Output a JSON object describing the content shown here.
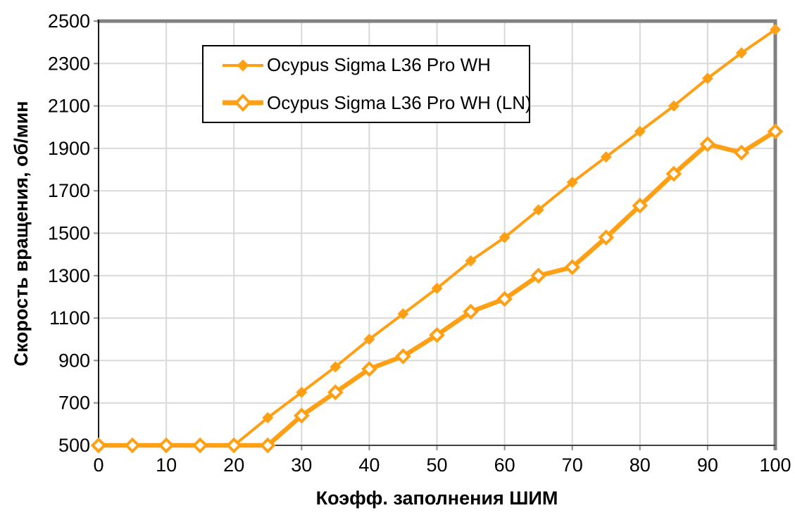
{
  "chart_data": {
    "type": "line",
    "title": "",
    "xlabel": "Коэфф. заполнения ШИМ",
    "ylabel": "Скорость вращения, об/мин",
    "xlim": [
      0,
      100
    ],
    "ylim": [
      500,
      2500
    ],
    "x_ticks": [
      0,
      10,
      20,
      30,
      40,
      50,
      60,
      70,
      80,
      90,
      100
    ],
    "y_ticks": [
      500,
      700,
      900,
      1100,
      1300,
      1500,
      1700,
      1900,
      2100,
      2300,
      2500
    ],
    "grid": true,
    "legend_position": "top-left-inset",
    "x": [
      0,
      5,
      10,
      15,
      20,
      25,
      30,
      35,
      40,
      45,
      50,
      55,
      60,
      65,
      70,
      75,
      80,
      85,
      90,
      95,
      100
    ],
    "series": [
      {
        "name": "Ocypus Sigma L36 Pro WH",
        "color": "#FFA014",
        "marker": "filled-diamond",
        "line_width": 4,
        "values": [
          500,
          500,
          500,
          500,
          500,
          630,
          750,
          870,
          1000,
          1120,
          1240,
          1370,
          1480,
          1610,
          1740,
          1860,
          1980,
          2100,
          2230,
          2350,
          2460
        ]
      },
      {
        "name": "Ocypus Sigma L36 Pro WH (LN)",
        "color": "#FFA014",
        "marker": "open-diamond",
        "line_width": 6.5,
        "values": [
          500,
          500,
          500,
          500,
          500,
          500,
          640,
          750,
          860,
          920,
          1020,
          1130,
          1190,
          1300,
          1340,
          1480,
          1630,
          1780,
          1920,
          1880,
          1980
        ]
      }
    ],
    "colors": {
      "series": "#FFA014",
      "gridline": "#D9D9D9",
      "border": "#808080",
      "axis_left": "#1A1A1A",
      "axis_bottom": "#404040",
      "tick": "#8C8C8C",
      "text": "#000000",
      "legend_border": "#000000",
      "background": "#FFFFFF"
    }
  }
}
